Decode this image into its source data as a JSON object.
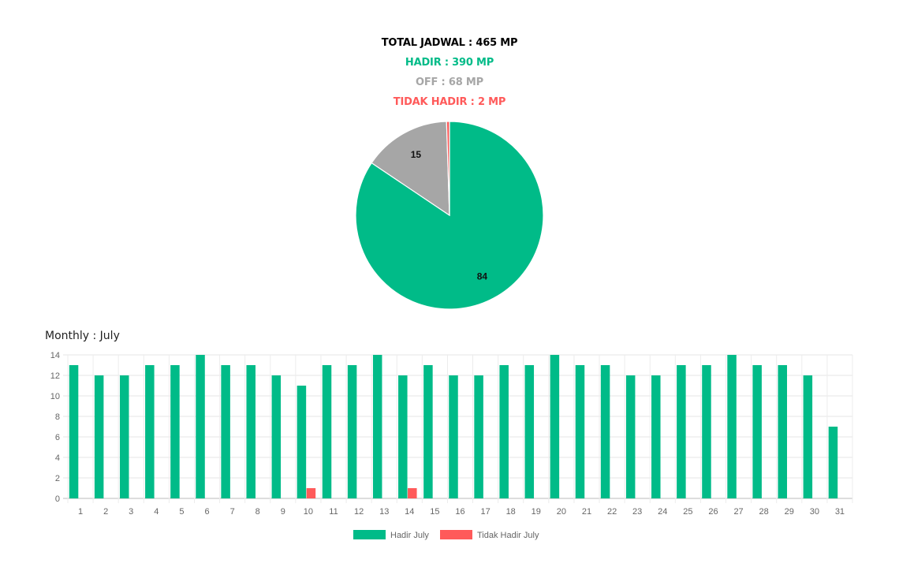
{
  "summary": {
    "total": "TOTAL JADWAL : 465 MP",
    "hadir": "HADIR : 390 MP",
    "off": "OFF : 68 MP",
    "tidak_hadir": "TIDAK HADIR : 2 MP"
  },
  "colors": {
    "total": "#000000",
    "hadir": "#00bb88",
    "off": "#a6a6a6",
    "tidak_hadir": "#ff5a5a"
  },
  "monthly_title": "Monthly : July",
  "chart_data": [
    {
      "type": "pie",
      "slices": [
        {
          "value": 84,
          "label": "84",
          "color": "#00bb88"
        },
        {
          "value": 15,
          "label": "15",
          "color": "#a6a6a6"
        },
        {
          "value": 0.5,
          "label": "",
          "color": "#ff5a5a"
        }
      ]
    },
    {
      "type": "bar",
      "categories": [
        "1",
        "2",
        "3",
        "4",
        "5",
        "6",
        "7",
        "8",
        "9",
        "10",
        "11",
        "12",
        "13",
        "14",
        "15",
        "16",
        "17",
        "18",
        "19",
        "20",
        "21",
        "22",
        "23",
        "24",
        "25",
        "26",
        "27",
        "28",
        "29",
        "30",
        "31"
      ],
      "series": [
        {
          "name": "Hadir July",
          "color": "#00bb88",
          "values": [
            13,
            12,
            12,
            13,
            13,
            14,
            13,
            13,
            12,
            11,
            13,
            13,
            14,
            12,
            13,
            12,
            12,
            13,
            13,
            14,
            13,
            13,
            12,
            12,
            13,
            13,
            14,
            13,
            13,
            12,
            7
          ]
        },
        {
          "name": "Tidak Hadir July",
          "color": "#ff5a5a",
          "values": [
            0,
            0,
            0,
            0,
            0,
            0,
            0,
            0,
            0,
            1,
            0,
            0,
            0,
            1,
            0,
            0,
            0,
            0,
            0,
            0,
            0,
            0,
            0,
            0,
            0,
            0,
            0,
            0,
            0,
            0,
            0
          ]
        }
      ],
      "yticks": [
        "0",
        "2",
        "4",
        "6",
        "8",
        "10",
        "12",
        "14"
      ],
      "ylim": [
        0,
        14
      ],
      "grid": true,
      "legend": "bottom-center"
    }
  ]
}
